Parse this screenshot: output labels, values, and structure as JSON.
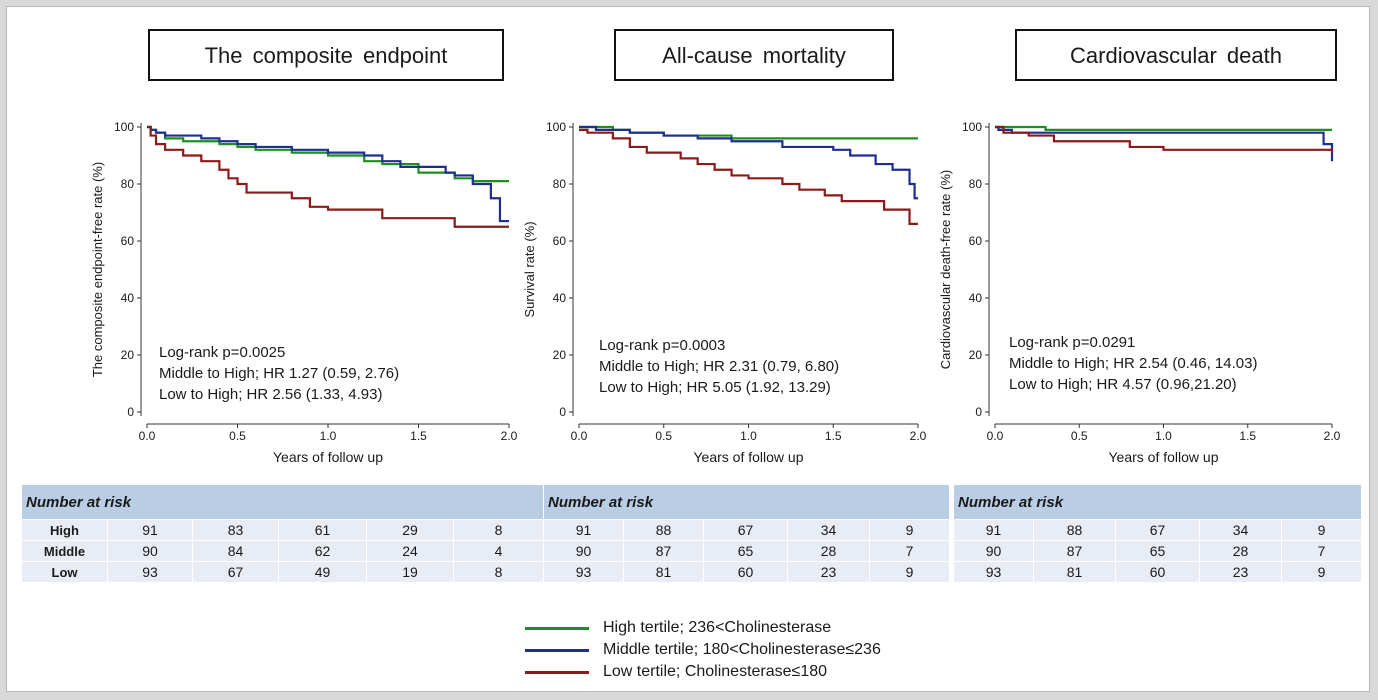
{
  "colors": {
    "high": "#1c8f1c",
    "middle": "#1e2f8f",
    "low": "#8b1a1a"
  },
  "x_axis_label": "Years of follow up",
  "panels": [
    {
      "title": "The composite  endpoint",
      "stat": [
        "Log-rank p=0.0025",
        "Middle to High; HR 1.27 (0.59, 2.76)",
        "Low to High; HR 2.56 (1.33, 4.93)"
      ]
    },
    {
      "title": "All-cause mortality",
      "stat": [
        "Log-rank p=0.0003",
        "Middle to High; HR 2.31 (0.79, 6.80)",
        "Low to High; HR 5.05 (1.92, 13.29)"
      ]
    },
    {
      "title": "Cardiovascular  death",
      "stat": [
        "Log-rank p=0.0291",
        "Middle to High; HR 2.54 (0.46, 14.03)",
        "Low to High; HR 4.57 (0.96,21.20)"
      ]
    }
  ],
  "chart_data": [
    {
      "type": "line",
      "title": "The composite  endpoint",
      "xlabel": "Years of follow up",
      "ylabel": "The composite  endpoint-free rate (%)",
      "xlim": [
        0,
        2.0
      ],
      "ylim": [
        0,
        100
      ],
      "xticks": [
        "0.0",
        "0.5",
        "1.0",
        "1.5",
        "2.0"
      ],
      "yticks": [
        "0",
        "20",
        "40",
        "60",
        "80",
        "100"
      ],
      "series": [
        {
          "name": "High tertile; 236<Cholinesterase",
          "x": [
            0,
            0.02,
            0.05,
            0.1,
            0.2,
            0.4,
            0.5,
            0.6,
            0.8,
            1.0,
            1.2,
            1.3,
            1.5,
            1.7,
            1.8,
            2.0
          ],
          "y": [
            100,
            99,
            98,
            96,
            95,
            94,
            93,
            92,
            91,
            90,
            88,
            87,
            84,
            82,
            81,
            81
          ]
        },
        {
          "name": "Middle tertile; 180<Cholinesterase≤236",
          "x": [
            0,
            0.02,
            0.05,
            0.1,
            0.3,
            0.4,
            0.5,
            0.6,
            0.8,
            1.0,
            1.2,
            1.3,
            1.4,
            1.65,
            1.7,
            1.8,
            1.9,
            1.95,
            2.0
          ],
          "y": [
            100,
            99,
            98,
            97,
            96,
            95,
            94,
            93,
            92,
            91,
            90,
            88,
            86,
            84,
            83,
            80,
            75,
            67,
            67
          ]
        },
        {
          "name": "Low tertile; Cholinesterase≤180",
          "x": [
            0,
            0.02,
            0.05,
            0.1,
            0.2,
            0.3,
            0.4,
            0.45,
            0.5,
            0.55,
            0.8,
            0.9,
            1.0,
            1.3,
            1.7,
            2.0
          ],
          "y": [
            100,
            97,
            94,
            92,
            90,
            88,
            85,
            82,
            80,
            77,
            75,
            72,
            71,
            68,
            65,
            65
          ]
        }
      ]
    },
    {
      "type": "line",
      "title": "All-cause mortality",
      "xlabel": "Years of follow up",
      "ylabel": "Survival rate (%)",
      "xlim": [
        0,
        2.0
      ],
      "ylim": [
        0,
        100
      ],
      "xticks": [
        "0.0",
        "0.5",
        "1.0",
        "1.5",
        "2.0"
      ],
      "yticks": [
        "0",
        "20",
        "40",
        "60",
        "80",
        "100"
      ],
      "series": [
        {
          "name": "High tertile; 236<Cholinesterase",
          "x": [
            0,
            0.05,
            0.2,
            0.3,
            0.5,
            0.7,
            0.9,
            1.1,
            2.0
          ],
          "y": [
            100,
            100,
            99,
            98,
            97,
            97,
            96,
            96,
            96
          ]
        },
        {
          "name": "Middle tertile; 180<Cholinesterase≤236",
          "x": [
            0,
            0.1,
            0.3,
            0.5,
            0.7,
            0.9,
            1.2,
            1.5,
            1.6,
            1.75,
            1.85,
            1.95,
            1.98,
            2.0
          ],
          "y": [
            100,
            99,
            98,
            97,
            96,
            95,
            93,
            92,
            90,
            87,
            85,
            80,
            75,
            75
          ]
        },
        {
          "name": "Low tertile; Cholinesterase≤180",
          "x": [
            0,
            0.05,
            0.2,
            0.3,
            0.4,
            0.6,
            0.7,
            0.8,
            0.9,
            1.0,
            1.2,
            1.3,
            1.45,
            1.55,
            1.8,
            1.95,
            2.0
          ],
          "y": [
            99,
            98,
            96,
            93,
            91,
            89,
            87,
            85,
            83,
            82,
            80,
            78,
            76,
            74,
            71,
            66,
            66
          ]
        }
      ]
    },
    {
      "type": "line",
      "title": "Cardiovascular  death",
      "xlabel": "Years of follow up",
      "ylabel": "Cardiovascular  death-free  rate (%)",
      "xlim": [
        0,
        2.0
      ],
      "ylim": [
        0,
        100
      ],
      "xticks": [
        "0.0",
        "0.5",
        "1.0",
        "1.5",
        "2.0"
      ],
      "yticks": [
        "0",
        "20",
        "40",
        "60",
        "80",
        "100"
      ],
      "series": [
        {
          "name": "High tertile; 236<Cholinesterase",
          "x": [
            0,
            0.3,
            2.0
          ],
          "y": [
            100,
            99,
            99
          ]
        },
        {
          "name": "Middle tertile; 180<Cholinesterase≤236",
          "x": [
            0,
            0.02,
            0.1,
            0.3,
            1.7,
            1.95,
            2.0
          ],
          "y": [
            100,
            99,
            98,
            98,
            98,
            94,
            88
          ]
        },
        {
          "name": "Low tertile; Cholinesterase≤180",
          "x": [
            0,
            0.05,
            0.2,
            0.35,
            0.8,
            1.0,
            1.9,
            2.0
          ],
          "y": [
            100,
            98,
            97,
            95,
            93,
            92,
            92,
            91
          ]
        }
      ]
    }
  ],
  "risk_tables": [
    {
      "header": "Number at risk",
      "rows": [
        {
          "label": "High",
          "values": [
            "91",
            "83",
            "61",
            "29",
            "8"
          ]
        },
        {
          "label": "Middle",
          "values": [
            "90",
            "84",
            "62",
            "24",
            "4"
          ]
        },
        {
          "label": "Low",
          "values": [
            "93",
            "67",
            "49",
            "19",
            "8"
          ]
        }
      ]
    },
    {
      "header": "Number at risk",
      "rows": [
        {
          "label": "",
          "values": [
            "91",
            "88",
            "67",
            "34",
            "9"
          ]
        },
        {
          "label": "",
          "values": [
            "90",
            "87",
            "65",
            "28",
            "7"
          ]
        },
        {
          "label": "",
          "values": [
            "93",
            "81",
            "60",
            "23",
            "9"
          ]
        }
      ]
    },
    {
      "header": "Number at risk",
      "rows": [
        {
          "label": "",
          "values": [
            "91",
            "88",
            "67",
            "34",
            "9"
          ]
        },
        {
          "label": "",
          "values": [
            "90",
            "87",
            "65",
            "28",
            "7"
          ]
        },
        {
          "label": "",
          "values": [
            "93",
            "81",
            "60",
            "23",
            "9"
          ]
        }
      ]
    }
  ],
  "legend": [
    {
      "key": "high",
      "label": "High tertile; 236<Cholinesterase"
    },
    {
      "key": "middle",
      "label": "Middle tertile; 180<Cholinesterase≤236"
    },
    {
      "key": "low",
      "label": "Low tertile; Cholinesterase≤180"
    }
  ]
}
